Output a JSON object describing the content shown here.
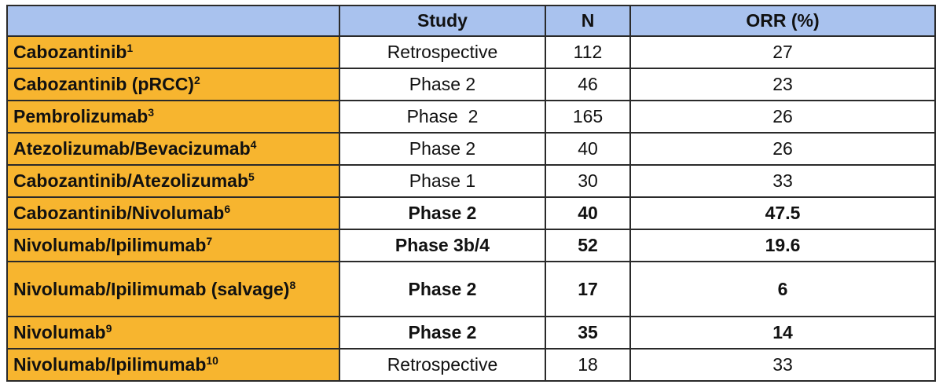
{
  "table": {
    "headers": [
      "",
      "Study",
      "N",
      "ORR (%)"
    ],
    "rows": [
      {
        "drug": "Cabozantinib",
        "ref": "1",
        "study": "Retrospective",
        "n": "112",
        "orr": "27",
        "bold": false
      },
      {
        "drug": "Cabozantinib (pRCC)",
        "ref": "2",
        "study": "Phase 2",
        "n": "46",
        "orr": "23",
        "bold": false
      },
      {
        "drug": "Pembrolizumab",
        "ref": "3",
        "study": "Phase  2",
        "n": "165",
        "orr": "26",
        "bold": false
      },
      {
        "drug": "Atezolizumab/Bevacizumab",
        "ref": "4",
        "study": "Phase 2",
        "n": "40",
        "orr": "26",
        "bold": false
      },
      {
        "drug": "Cabozantinib/Atezolizumab",
        "ref": "5",
        "study": "Phase 1",
        "n": "30",
        "orr": "33",
        "bold": false
      },
      {
        "drug": "Cabozantinib/Nivolumab",
        "ref": "6",
        "study": "Phase 2",
        "n": "40",
        "orr": "47.5",
        "bold": true
      },
      {
        "drug": "Nivolumab/Ipilimumab",
        "ref": "7",
        "study": "Phase 3b/4",
        "n": "52",
        "orr": "19.6",
        "bold": true
      },
      {
        "drug": "Nivolumab/Ipilimumab (salvage)",
        "ref": "8",
        "study": "Phase 2",
        "n": "17",
        "orr": "6",
        "bold": true
      },
      {
        "drug": "Nivolumab",
        "ref": "9",
        "study": "Phase 2",
        "n": "35",
        "orr": "14",
        "bold": true
      },
      {
        "drug": "Nivolumab/Ipilimumab",
        "ref": "10",
        "study": "Retrospective",
        "n": "18",
        "orr": "33",
        "bold": false
      }
    ]
  },
  "colors": {
    "header_bg": "#a9c2ee",
    "drug_bg": "#f7b52f",
    "border": "#2a2a2a"
  }
}
